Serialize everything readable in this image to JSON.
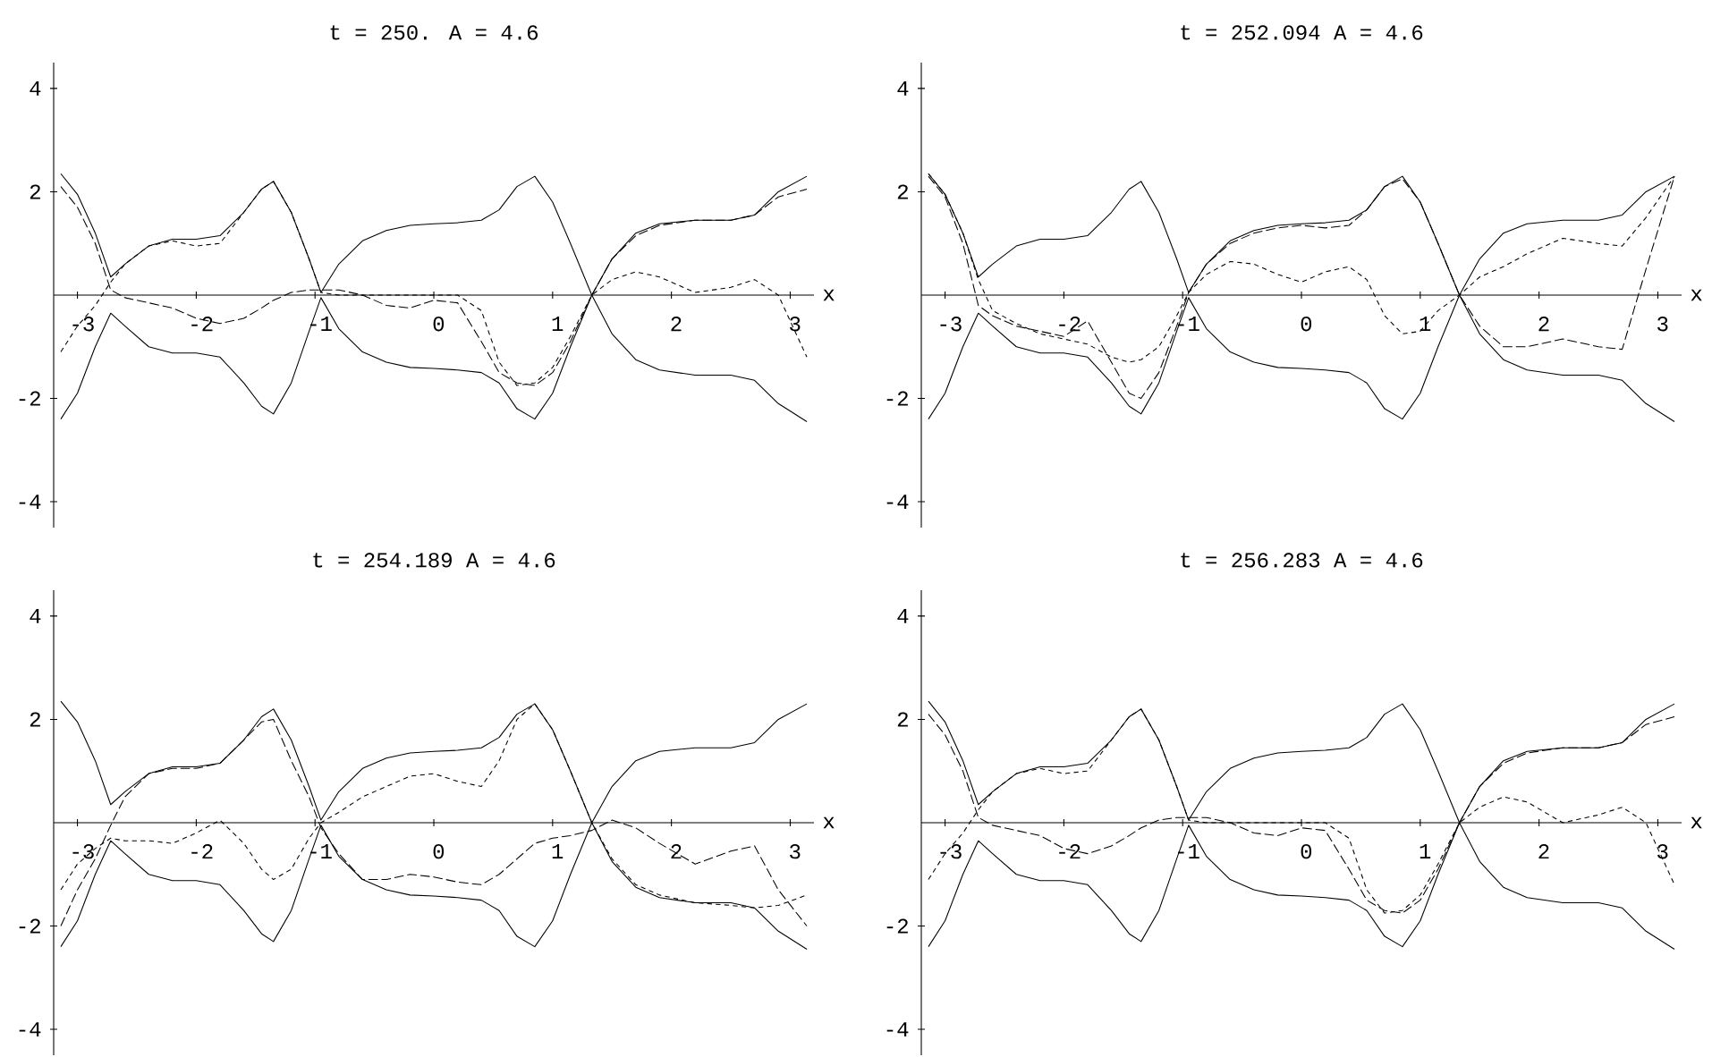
{
  "chart_data": [
    {
      "type": "line",
      "title": "t = 250.   A = 4.6",
      "xlabel": "x",
      "xlim": [
        -3.2,
        3.2
      ],
      "ylim": [
        -4.5,
        4.5
      ],
      "xticks": [
        -3,
        -2,
        -1,
        0,
        1,
        2,
        3
      ],
      "yticks": [
        -4,
        -2,
        2,
        4
      ],
      "x": [
        -3.14,
        -3.0,
        -2.85,
        -2.72,
        -2.6,
        -2.4,
        -2.2,
        -2.0,
        -1.8,
        -1.6,
        -1.45,
        -1.35,
        -1.2,
        -1.05,
        -0.95,
        -0.8,
        -0.6,
        -0.4,
        -0.2,
        0,
        0.2,
        0.4,
        0.55,
        0.7,
        0.85,
        1.0,
        1.15,
        1.33,
        1.5,
        1.7,
        1.9,
        2.2,
        2.5,
        2.7,
        2.9,
        3.14
      ],
      "series": [
        {
          "color": "#000000",
          "line_style": "solid",
          "values": [
            2.35,
            1.95,
            1.2,
            0.35,
            0.6,
            0.95,
            1.08,
            1.08,
            1.15,
            1.6,
            2.05,
            2.2,
            1.6,
            0.7,
            0.05,
            0.6,
            1.05,
            1.25,
            1.35,
            1.38,
            1.4,
            1.45,
            1.65,
            2.1,
            2.3,
            1.8,
            1.0,
            0.0,
            0.7,
            1.2,
            1.38,
            1.45,
            1.45,
            1.55,
            2.0,
            2.3
          ]
        },
        {
          "color": "#000000",
          "line_style": "solid",
          "values": [
            -2.4,
            -1.9,
            -1.0,
            -0.35,
            -0.6,
            -1.0,
            -1.12,
            -1.12,
            -1.2,
            -1.7,
            -2.15,
            -2.3,
            -1.7,
            -0.7,
            -0.05,
            -0.65,
            -1.1,
            -1.3,
            -1.4,
            -1.42,
            -1.45,
            -1.5,
            -1.7,
            -2.2,
            -2.4,
            -1.9,
            -1.0,
            0.0,
            -0.75,
            -1.25,
            -1.45,
            -1.55,
            -1.55,
            -1.65,
            -2.1,
            -2.45
          ]
        },
        {
          "color": "#000000",
          "line_style": "dashed",
          "values": [
            2.1,
            1.7,
            1.0,
            0.1,
            -0.05,
            -0.15,
            -0.25,
            -0.45,
            -0.55,
            -0.45,
            -0.25,
            -0.1,
            0.05,
            0.1,
            0.1,
            0.1,
            0.0,
            -0.2,
            -0.25,
            -0.1,
            -0.15,
            -0.9,
            -1.5,
            -1.7,
            -1.75,
            -1.5,
            -0.9,
            0.0,
            0.7,
            1.15,
            1.35,
            1.45,
            1.45,
            1.55,
            1.9,
            2.05
          ]
        },
        {
          "color": "#000000",
          "line_style": "dotted",
          "values": [
            -1.1,
            -0.6,
            -0.2,
            0.25,
            0.6,
            0.95,
            1.05,
            0.95,
            1.0,
            1.6,
            2.05,
            2.2,
            1.6,
            0.7,
            0.05,
            0.0,
            0.0,
            0.0,
            0.0,
            0.0,
            0.0,
            -0.3,
            -1.3,
            -1.75,
            -1.7,
            -1.4,
            -0.8,
            0.0,
            0.3,
            0.45,
            0.35,
            0.05,
            0.15,
            0.3,
            0.0,
            -1.2
          ]
        }
      ]
    },
    {
      "type": "line",
      "title": "t = 252.094   A = 4.6",
      "xlabel": "x",
      "xlim": [
        -3.2,
        3.2
      ],
      "ylim": [
        -4.5,
        4.5
      ],
      "xticks": [
        -3,
        -2,
        -1,
        0,
        1,
        2,
        3
      ],
      "yticks": [
        -4,
        -2,
        2,
        4
      ],
      "x": [
        -3.14,
        -3.0,
        -2.85,
        -2.72,
        -2.6,
        -2.4,
        -2.2,
        -2.0,
        -1.8,
        -1.6,
        -1.45,
        -1.35,
        -1.2,
        -1.05,
        -0.95,
        -0.8,
        -0.6,
        -0.4,
        -0.2,
        0,
        0.2,
        0.4,
        0.55,
        0.7,
        0.85,
        1.0,
        1.15,
        1.33,
        1.5,
        1.7,
        1.9,
        2.2,
        2.5,
        2.7,
        2.9,
        3.14
      ],
      "series": [
        {
          "color": "#000000",
          "line_style": "solid",
          "values": [
            2.35,
            1.95,
            1.2,
            0.35,
            0.6,
            0.95,
            1.08,
            1.08,
            1.15,
            1.6,
            2.05,
            2.2,
            1.6,
            0.7,
            0.05,
            0.6,
            1.05,
            1.25,
            1.35,
            1.38,
            1.4,
            1.45,
            1.65,
            2.1,
            2.3,
            1.8,
            1.0,
            0.0,
            0.7,
            1.2,
            1.38,
            1.45,
            1.45,
            1.55,
            2.0,
            2.3
          ]
        },
        {
          "color": "#000000",
          "line_style": "solid",
          "values": [
            -2.4,
            -1.9,
            -1.0,
            -0.35,
            -0.6,
            -1.0,
            -1.12,
            -1.12,
            -1.2,
            -1.7,
            -2.15,
            -2.3,
            -1.7,
            -0.7,
            -0.05,
            -0.65,
            -1.1,
            -1.3,
            -1.4,
            -1.42,
            -1.45,
            -1.5,
            -1.7,
            -2.2,
            -2.4,
            -1.9,
            -1.0,
            0.0,
            -0.75,
            -1.25,
            -1.45,
            -1.55,
            -1.55,
            -1.65,
            -2.1,
            -2.45
          ]
        },
        {
          "color": "#000000",
          "line_style": "dashed",
          "values": [
            2.3,
            1.9,
            1.0,
            -0.2,
            -0.4,
            -0.6,
            -0.7,
            -0.8,
            -0.5,
            -1.3,
            -1.9,
            -2.0,
            -1.5,
            -0.6,
            0.05,
            0.6,
            1.0,
            1.2,
            1.3,
            1.35,
            1.3,
            1.35,
            1.65,
            2.1,
            2.25,
            1.8,
            1.0,
            0.0,
            -0.6,
            -1.0,
            -1.0,
            -0.85,
            -1.0,
            -1.05,
            0.5,
            2.3
          ]
        },
        {
          "color": "#000000",
          "line_style": "dotted",
          "values": [
            2.35,
            1.95,
            1.2,
            0.3,
            -0.3,
            -0.55,
            -0.75,
            -0.85,
            -0.95,
            -1.2,
            -1.3,
            -1.25,
            -1.0,
            -0.4,
            0.05,
            0.4,
            0.65,
            0.6,
            0.4,
            0.25,
            0.45,
            0.55,
            0.3,
            -0.4,
            -0.75,
            -0.7,
            -0.3,
            0.0,
            0.35,
            0.55,
            0.8,
            1.1,
            1.0,
            0.95,
            1.5,
            2.3
          ]
        }
      ]
    },
    {
      "type": "line",
      "title": "t = 254.189   A = 4.6",
      "xlabel": "x",
      "xlim": [
        -3.2,
        3.2
      ],
      "ylim": [
        -4.5,
        4.5
      ],
      "xticks": [
        -3,
        -2,
        -1,
        0,
        1,
        2,
        3
      ],
      "yticks": [
        -4,
        -2,
        2,
        4
      ],
      "x": [
        -3.14,
        -3.0,
        -2.85,
        -2.72,
        -2.6,
        -2.4,
        -2.2,
        -2.0,
        -1.8,
        -1.6,
        -1.45,
        -1.35,
        -1.2,
        -1.05,
        -0.95,
        -0.8,
        -0.6,
        -0.4,
        -0.2,
        0,
        0.2,
        0.4,
        0.55,
        0.7,
        0.85,
        1.0,
        1.15,
        1.33,
        1.5,
        1.7,
        1.9,
        2.2,
        2.5,
        2.7,
        2.9,
        3.14
      ],
      "series": [
        {
          "color": "#000000",
          "line_style": "solid",
          "values": [
            2.35,
            1.95,
            1.2,
            0.35,
            0.6,
            0.95,
            1.08,
            1.08,
            1.15,
            1.6,
            2.05,
            2.2,
            1.6,
            0.7,
            0.05,
            0.6,
            1.05,
            1.25,
            1.35,
            1.38,
            1.4,
            1.45,
            1.65,
            2.1,
            2.3,
            1.8,
            1.0,
            0.0,
            0.7,
            1.2,
            1.38,
            1.45,
            1.45,
            1.55,
            2.0,
            2.3
          ]
        },
        {
          "color": "#000000",
          "line_style": "solid",
          "values": [
            -2.4,
            -1.9,
            -1.0,
            -0.35,
            -0.6,
            -1.0,
            -1.12,
            -1.12,
            -1.2,
            -1.7,
            -2.15,
            -2.3,
            -1.7,
            -0.7,
            -0.05,
            -0.65,
            -1.1,
            -1.3,
            -1.4,
            -1.42,
            -1.45,
            -1.5,
            -1.7,
            -2.2,
            -2.4,
            -1.9,
            -1.0,
            0.0,
            -0.75,
            -1.25,
            -1.45,
            -1.55,
            -1.55,
            -1.65,
            -2.1,
            -2.45
          ]
        },
        {
          "color": "#000000",
          "line_style": "dashed",
          "values": [
            -2.0,
            -1.3,
            -0.7,
            -0.05,
            0.5,
            0.95,
            1.05,
            1.05,
            1.15,
            1.6,
            1.95,
            2.0,
            1.2,
            0.5,
            -0.1,
            -0.6,
            -1.1,
            -1.1,
            -1.0,
            -1.05,
            -1.15,
            -1.2,
            -1.0,
            -0.7,
            -0.4,
            -0.3,
            -0.25,
            -0.15,
            0.05,
            -0.1,
            -0.4,
            -0.8,
            -0.55,
            -0.45,
            -1.3,
            -2.0
          ]
        },
        {
          "color": "#000000",
          "line_style": "dotted",
          "values": [
            -1.3,
            -0.8,
            -0.5,
            -0.3,
            -0.35,
            -0.35,
            -0.4,
            -0.2,
            0.05,
            -0.4,
            -0.9,
            -1.1,
            -0.9,
            -0.3,
            0.0,
            0.2,
            0.5,
            0.7,
            0.9,
            0.95,
            0.8,
            0.7,
            1.2,
            2.0,
            2.3,
            1.8,
            1.0,
            0.0,
            -0.7,
            -1.2,
            -1.4,
            -1.55,
            -1.6,
            -1.65,
            -1.6,
            -1.4
          ]
        }
      ]
    },
    {
      "type": "line",
      "title": "t = 256.283   A = 4.6",
      "xlabel": "x",
      "xlim": [
        -3.2,
        3.2
      ],
      "ylim": [
        -4.5,
        4.5
      ],
      "xticks": [
        -3,
        -2,
        -1,
        0,
        1,
        2,
        3
      ],
      "yticks": [
        -4,
        -2,
        2,
        4
      ],
      "x": [
        -3.14,
        -3.0,
        -2.85,
        -2.72,
        -2.6,
        -2.4,
        -2.2,
        -2.0,
        -1.8,
        -1.6,
        -1.45,
        -1.35,
        -1.2,
        -1.05,
        -0.95,
        -0.8,
        -0.6,
        -0.4,
        -0.2,
        0,
        0.2,
        0.4,
        0.55,
        0.7,
        0.85,
        1.0,
        1.15,
        1.33,
        1.5,
        1.7,
        1.9,
        2.2,
        2.5,
        2.7,
        2.9,
        3.14
      ],
      "series": [
        {
          "color": "#000000",
          "line_style": "solid",
          "values": [
            2.35,
            1.95,
            1.2,
            0.35,
            0.6,
            0.95,
            1.08,
            1.08,
            1.15,
            1.6,
            2.05,
            2.2,
            1.6,
            0.7,
            0.05,
            0.6,
            1.05,
            1.25,
            1.35,
            1.38,
            1.4,
            1.45,
            1.65,
            2.1,
            2.3,
            1.8,
            1.0,
            0.0,
            0.7,
            1.2,
            1.38,
            1.45,
            1.45,
            1.55,
            2.0,
            2.3
          ]
        },
        {
          "color": "#000000",
          "line_style": "solid",
          "values": [
            -2.4,
            -1.9,
            -1.0,
            -0.35,
            -0.6,
            -1.0,
            -1.12,
            -1.12,
            -1.2,
            -1.7,
            -2.15,
            -2.3,
            -1.7,
            -0.7,
            -0.05,
            -0.65,
            -1.1,
            -1.3,
            -1.4,
            -1.42,
            -1.45,
            -1.5,
            -1.7,
            -2.2,
            -2.4,
            -1.9,
            -1.0,
            0.0,
            -0.75,
            -1.25,
            -1.45,
            -1.55,
            -1.55,
            -1.65,
            -2.1,
            -2.45
          ]
        },
        {
          "color": "#000000",
          "line_style": "dashed",
          "values": [
            2.1,
            1.7,
            1.0,
            0.1,
            -0.05,
            -0.15,
            -0.25,
            -0.5,
            -0.6,
            -0.45,
            -0.25,
            -0.1,
            0.05,
            0.1,
            0.1,
            0.1,
            0.0,
            -0.2,
            -0.25,
            -0.1,
            -0.15,
            -0.9,
            -1.5,
            -1.7,
            -1.75,
            -1.5,
            -0.9,
            0.0,
            0.7,
            1.15,
            1.35,
            1.45,
            1.45,
            1.55,
            1.9,
            2.05
          ]
        },
        {
          "color": "#000000",
          "line_style": "dotted",
          "values": [
            -1.1,
            -0.6,
            -0.2,
            0.25,
            0.6,
            0.95,
            1.05,
            0.95,
            1.0,
            1.6,
            2.05,
            2.2,
            1.6,
            0.7,
            0.05,
            0.0,
            0.0,
            0.0,
            0.0,
            0.0,
            0.0,
            -0.3,
            -1.3,
            -1.75,
            -1.7,
            -1.4,
            -0.8,
            0.0,
            0.3,
            0.5,
            0.4,
            0.0,
            0.15,
            0.3,
            0.0,
            -1.2
          ]
        }
      ]
    }
  ]
}
